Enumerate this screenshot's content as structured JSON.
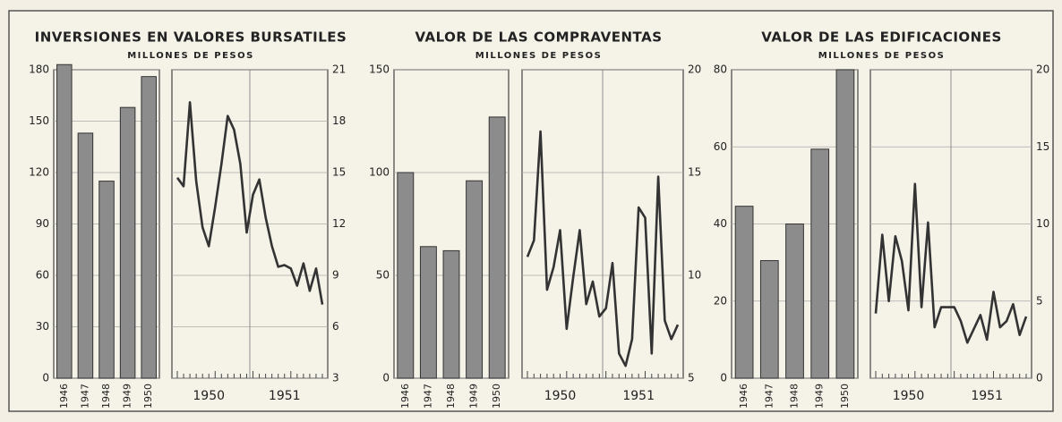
{
  "chart_data": [
    {
      "type": "bar",
      "title": "INVERSIONES EN VALORES BURSATILES",
      "subtitle": "MILLONES DE PESOS",
      "categories": [
        "1946",
        "1947",
        "1948",
        "1949",
        "1950"
      ],
      "values": [
        183,
        143,
        115,
        158,
        176
      ],
      "ylim": [
        0,
        180
      ],
      "yticks": [
        0,
        30,
        60,
        90,
        120,
        150,
        180
      ],
      "grid": true,
      "color": "#8c8c8c"
    },
    {
      "type": "line",
      "categories": [
        null,
        null,
        null,
        null,
        null,
        "1950",
        null,
        null,
        null,
        null,
        null,
        null,
        null,
        null,
        null,
        null,
        null,
        "1951",
        null,
        null,
        null,
        null,
        null,
        null
      ],
      "values": [
        14.7,
        14.2,
        19.1,
        14.5,
        11.8,
        10.7,
        13,
        15.5,
        18.3,
        17.5,
        15.5,
        11.5,
        13.7,
        14.6,
        12.4,
        10.7,
        9.5,
        9.6,
        9.4,
        8.4,
        9.7,
        8.1,
        9.4,
        7.3
      ],
      "ylim": [
        3,
        21
      ],
      "yticks": [
        3,
        6,
        9,
        12,
        15,
        18,
        21
      ],
      "grid": true,
      "color": "#333333"
    },
    {
      "type": "bar",
      "title": "VALOR DE LAS COMPRAVENTAS",
      "subtitle": "MILLONES DE PESOS",
      "categories": [
        "1946",
        "1947",
        "1948",
        "1949",
        "1950"
      ],
      "values": [
        100,
        64,
        62,
        96,
        127
      ],
      "ylim": [
        0,
        150
      ],
      "yticks": [
        0,
        50,
        100,
        150
      ],
      "grid": true,
      "color": "#8c8c8c"
    },
    {
      "type": "line",
      "categories": [
        null,
        null,
        null,
        null,
        null,
        "1950",
        null,
        null,
        null,
        null,
        null,
        null,
        null,
        null,
        null,
        null,
        null,
        "1951",
        null,
        null,
        null,
        null,
        null,
        null
      ],
      "values": [
        10.9,
        11.7,
        17,
        9.3,
        10.4,
        12.2,
        7.4,
        9.9,
        12.2,
        8.6,
        9.7,
        8,
        8.4,
        10.6,
        6.2,
        5.6,
        6.9,
        13.3,
        12.8,
        6.2,
        14.8,
        7.8,
        6.9,
        7.6
      ],
      "ylim": [
        5,
        20
      ],
      "yticks": [
        5,
        10,
        15,
        20
      ],
      "grid": true,
      "color": "#333333"
    },
    {
      "type": "bar",
      "title": "VALOR DE LAS EDIFICACIONES",
      "subtitle": "MILLONES DE PESOS",
      "categories": [
        "1946",
        "1947",
        "1948",
        "1949",
        "1950"
      ],
      "values": [
        44.6,
        30.5,
        40,
        59.4,
        80
      ],
      "ylim": [
        0,
        80
      ],
      "yticks": [
        0,
        20,
        40,
        60,
        80
      ],
      "grid": true,
      "color": "#8c8c8c"
    },
    {
      "type": "line",
      "categories": [
        null,
        null,
        null,
        null,
        null,
        "1950",
        null,
        null,
        null,
        null,
        null,
        null,
        null,
        null,
        null,
        null,
        null,
        "1951",
        null,
        null,
        null,
        null,
        null,
        null
      ],
      "values": [
        4.2,
        9.3,
        5,
        9.2,
        7.6,
        4.4,
        12.6,
        4.6,
        10.1,
        3.3,
        4.6,
        4.6,
        4.6,
        3.7,
        2.3,
        3.2,
        4.1,
        2.5,
        5.6,
        3.3,
        3.7,
        4.8,
        2.8,
        4
      ],
      "ylim": [
        0,
        20
      ],
      "yticks": [
        0,
        5,
        10,
        15,
        20
      ],
      "grid": true,
      "color": "#333333"
    }
  ]
}
